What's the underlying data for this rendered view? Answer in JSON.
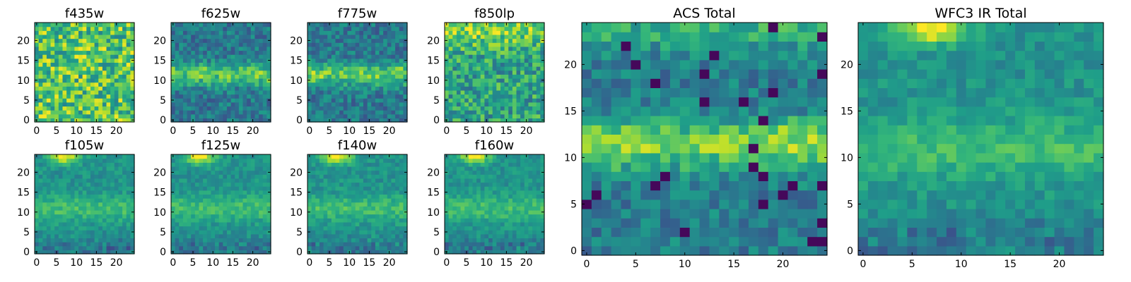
{
  "chart_data": [
    {
      "type": "heatmap",
      "title": "f435w",
      "pattern": "uniform",
      "colormap": "viridis",
      "xlim": [
        0,
        25
      ],
      "ylim": [
        0,
        25
      ],
      "xticks": [
        0,
        5,
        10,
        15,
        20
      ],
      "yticks": [
        0,
        5,
        10,
        15,
        20
      ],
      "grid": false
    },
    {
      "type": "heatmap",
      "title": "f625w",
      "pattern": "band",
      "colormap": "viridis",
      "xlim": [
        0,
        25
      ],
      "ylim": [
        0,
        25
      ],
      "xticks": [
        0,
        5,
        10,
        15,
        20
      ],
      "yticks": [
        0,
        5,
        10,
        15,
        20
      ],
      "grid": false
    },
    {
      "type": "heatmap",
      "title": "f775w",
      "pattern": "band",
      "colormap": "viridis",
      "xlim": [
        0,
        25
      ],
      "ylim": [
        0,
        25
      ],
      "xticks": [
        0,
        5,
        10,
        15,
        20
      ],
      "yticks": [
        0,
        5,
        10,
        15,
        20
      ],
      "grid": false
    },
    {
      "type": "heatmap",
      "title": "f850lp",
      "pattern": "top",
      "colormap": "viridis",
      "xlim": [
        0,
        25
      ],
      "ylim": [
        0,
        25
      ],
      "xticks": [
        0,
        5,
        10,
        15,
        20
      ],
      "yticks": [
        0,
        5,
        10,
        15,
        20
      ],
      "grid": false
    },
    {
      "type": "heatmap",
      "title": "f105w",
      "pattern": "ir",
      "colormap": "viridis",
      "xlim": [
        0,
        25
      ],
      "ylim": [
        0,
        25
      ],
      "xticks": [
        0,
        5,
        10,
        15,
        20
      ],
      "yticks": [
        0,
        5,
        10,
        15,
        20
      ],
      "grid": false
    },
    {
      "type": "heatmap",
      "title": "f125w",
      "pattern": "ir",
      "colormap": "viridis",
      "xlim": [
        0,
        25
      ],
      "ylim": [
        0,
        25
      ],
      "xticks": [
        0,
        5,
        10,
        15,
        20
      ],
      "yticks": [
        0,
        5,
        10,
        15,
        20
      ],
      "grid": false
    },
    {
      "type": "heatmap",
      "title": "f140w",
      "pattern": "ir",
      "colormap": "viridis",
      "xlim": [
        0,
        25
      ],
      "ylim": [
        0,
        25
      ],
      "xticks": [
        0,
        5,
        10,
        15,
        20
      ],
      "yticks": [
        0,
        5,
        10,
        15,
        20
      ],
      "grid": false
    },
    {
      "type": "heatmap",
      "title": "f160w",
      "pattern": "ir",
      "colormap": "viridis",
      "xlim": [
        0,
        25
      ],
      "ylim": [
        0,
        25
      ],
      "xticks": [
        0,
        5,
        10,
        15,
        20
      ],
      "yticks": [
        0,
        5,
        10,
        15,
        20
      ],
      "grid": false
    },
    {
      "type": "heatmap",
      "title": "ACS Total",
      "pattern": "acs",
      "colormap": "viridis",
      "xlim": [
        0,
        25
      ],
      "ylim": [
        0,
        25
      ],
      "xticks": [
        0,
        5,
        10,
        15,
        20
      ],
      "yticks": [
        0,
        5,
        10,
        15,
        20
      ],
      "grid": false
    },
    {
      "type": "heatmap",
      "title": "WFC3 IR Total",
      "pattern": "ir",
      "colormap": "viridis",
      "xlim": [
        0,
        25
      ],
      "ylim": [
        0,
        25
      ],
      "xticks": [
        0,
        5,
        10,
        15,
        20
      ],
      "yticks": [
        0,
        5,
        10,
        15,
        20
      ],
      "grid": false
    }
  ]
}
